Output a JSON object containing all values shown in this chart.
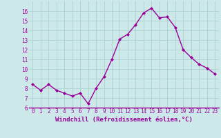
{
  "x": [
    0,
    1,
    2,
    3,
    4,
    5,
    6,
    7,
    8,
    9,
    10,
    11,
    12,
    13,
    14,
    15,
    16,
    17,
    18,
    19,
    20,
    21,
    22,
    23
  ],
  "y": [
    8.4,
    7.8,
    8.4,
    7.8,
    7.5,
    7.2,
    7.5,
    6.4,
    8.0,
    9.2,
    11.0,
    13.1,
    13.6,
    14.6,
    15.8,
    16.3,
    15.3,
    15.4,
    14.3,
    12.0,
    11.2,
    10.5,
    10.1,
    9.5
  ],
  "line_color": "#990099",
  "marker": "D",
  "marker_size": 2.0,
  "bg_color": "#cce8e8",
  "grid_color": "#b0d4d4",
  "xlabel": "Windchill (Refroidissement éolien,°C)",
  "xlabel_color": "#990099",
  "tick_color": "#990099",
  "ylim": [
    6,
    17
  ],
  "xlim": [
    -0.5,
    23.5
  ],
  "yticks": [
    6,
    7,
    8,
    9,
    10,
    11,
    12,
    13,
    14,
    15,
    16
  ],
  "xticks": [
    0,
    1,
    2,
    3,
    4,
    5,
    6,
    7,
    8,
    9,
    10,
    11,
    12,
    13,
    14,
    15,
    16,
    17,
    18,
    19,
    20,
    21,
    22,
    23
  ],
  "xtick_labels": [
    "0",
    "1",
    "2",
    "3",
    "4",
    "5",
    "6",
    "7",
    "8",
    "9",
    "10",
    "11",
    "12",
    "13",
    "14",
    "15",
    "16",
    "17",
    "18",
    "19",
    "20",
    "21",
    "22",
    "23"
  ],
  "font_size": 5.5,
  "xlabel_font_size": 6.5,
  "line_width": 1.0
}
